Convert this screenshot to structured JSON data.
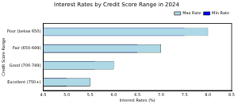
{
  "chart_data": {
    "type": "bar",
    "orientation": "horizontal",
    "title": "Interest Rates by Credit Score Range in 2024",
    "x_label": "Interest Rates (%)",
    "y_label": "Credit Score Range",
    "categories": [
      "Poor (below 650)",
      "Fair (650-699)",
      "Good (700-749)",
      "Excellent (750+)"
    ],
    "series": [
      {
        "name": "Max Rate",
        "color": "#add8e6",
        "values": [
          8.0,
          7.0,
          6.0,
          5.5
        ]
      },
      {
        "name": "Min Rate",
        "color": "#0000ff",
        "values": [
          7.5,
          6.5,
          5.6,
          5.0
        ]
      }
    ],
    "xlim": [
      4.5,
      8.5
    ],
    "xticks": [
      4.5,
      {
        "value": 5,
        "label": "5.0"
      },
      5.5,
      {
        "value": 6,
        "label": "6.0"
      },
      6.5,
      {
        "value": 7,
        "label": "7.0"
      },
      7.5,
      {
        "value": 8,
        "label": "8.0"
      },
      8.5
    ],
    "grid": false,
    "legend": "upper right"
  }
}
